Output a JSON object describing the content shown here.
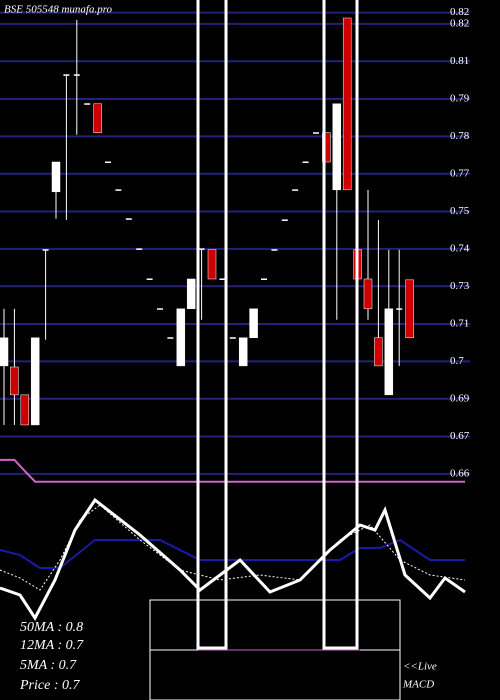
{
  "chart_data": {
    "type": "candlestick",
    "title": "BSE 505548 munafa.pro",
    "open": [
      0.6984,
      0.698,
      0.6881,
      0.6774,
      0.7397,
      0.7603,
      0.8019,
      0.8019,
      0.7916,
      0.7916,
      0.7709,
      0.761,
      0.7507,
      0.74,
      0.7293,
      0.7187,
      0.7084,
      0.6984,
      0.7187,
      0.74,
      0.7397,
      0.7293,
      0.7084,
      0.6984,
      0.7084,
      0.7293,
      0.7397,
      0.7503,
      0.761,
      0.7709,
      0.7813,
      0.7813,
      0.761,
      0.8221,
      0.7397,
      0.7293,
      0.7084,
      0.6881,
      0.7187,
      0.729
    ],
    "high": [
      0.7187,
      0.7187,
      0.6881,
      0.7084,
      0.7397,
      0.7709,
      0.8019,
      0.8214,
      0.7916,
      0.7916,
      0.7709,
      0.761,
      0.7507,
      0.74,
      0.7293,
      0.7187,
      0.7084,
      0.7187,
      0.7293,
      0.74,
      0.7397,
      0.7293,
      0.7084,
      0.7084,
      0.7187,
      0.7293,
      0.7397,
      0.7503,
      0.761,
      0.7709,
      0.7813,
      0.7813,
      0.7916,
      0.8221,
      0.761,
      0.761,
      0.7503,
      0.7397,
      0.7397,
      0.729
    ],
    "low": [
      0.6774,
      0.6774,
      0.6774,
      0.6774,
      0.7077,
      0.7507,
      0.7503,
      0.7806,
      0.7916,
      0.7813,
      0.7709,
      0.761,
      0.7507,
      0.74,
      0.7293,
      0.7187,
      0.7084,
      0.6984,
      0.7187,
      0.7148,
      0.7293,
      0.7293,
      0.7084,
      0.6984,
      0.7084,
      0.7293,
      0.7397,
      0.7503,
      0.761,
      0.7709,
      0.7813,
      0.7709,
      0.7148,
      0.761,
      0.7148,
      0.7148,
      0.6984,
      0.6881,
      0.6984,
      0.7084
    ],
    "close": [
      0.7084,
      0.6881,
      0.6774,
      0.7084,
      0.7397,
      0.7709,
      0.8019,
      0.8019,
      0.7916,
      0.7813,
      0.7709,
      0.761,
      0.7507,
      0.74,
      0.7293,
      0.7187,
      0.7084,
      0.7187,
      0.7293,
      0.74,
      0.7293,
      0.7293,
      0.7084,
      0.7084,
      0.7187,
      0.7293,
      0.7397,
      0.7503,
      0.761,
      0.7709,
      0.7813,
      0.7709,
      0.7916,
      0.761,
      0.7293,
      0.7187,
      0.6984,
      0.7187,
      0.7187,
      0.7084
    ],
    "up_color": "#ffffff",
    "down_color": "#cc0000",
    "ma_color": "#cc66cc",
    "ma_values": [
      0.665,
      0.665,
      0.661,
      0.6572,
      0.6572,
      0.6572,
      0.6572,
      0.6572,
      0.6572,
      0.6572,
      0.6572,
      0.6572,
      0.6572,
      0.6572,
      0.6572,
      0.6572,
      0.6572,
      0.6572,
      0.6572,
      0.6572,
      0.6572,
      0.6572,
      0.6572,
      0.6572,
      0.6572,
      0.6572,
      0.6572,
      0.6572,
      0.6572,
      0.6572,
      0.6572,
      0.6572,
      0.6572,
      0.6572,
      0.6572,
      0.6572,
      0.6572,
      0.6572,
      0.6572,
      0.6572
    ],
    "ylim": [
      0.6564,
      0.8285
    ],
    "yticks": [
      {
        "value": 0.824,
        "label": "0.82"
      },
      0.82,
      {
        "value": 0.8067,
        "label": "0.81"
      },
      {
        "value": 0.7933,
        "label": "0.79"
      },
      0.78,
      {
        "value": 0.7667,
        "label": "0.77"
      },
      {
        "value": 0.7533,
        "label": "0.75"
      },
      0.74,
      {
        "value": 0.7267,
        "label": "0.73"
      },
      {
        "value": 0.7133,
        "label": "0.71"
      },
      0.7,
      {
        "value": 0.6867,
        "label": "0.69"
      },
      {
        "value": 0.6733,
        "label": "0.67"
      },
      0.66
    ],
    "grid": true,
    "grid_color": "#22227a",
    "annotations": [
      "50MA : 0.8",
      "12MA : 0.7",
      "5MA : 0.7",
      "Price  : 0.7",
      "<<Live",
      "MACD"
    ]
  }
}
